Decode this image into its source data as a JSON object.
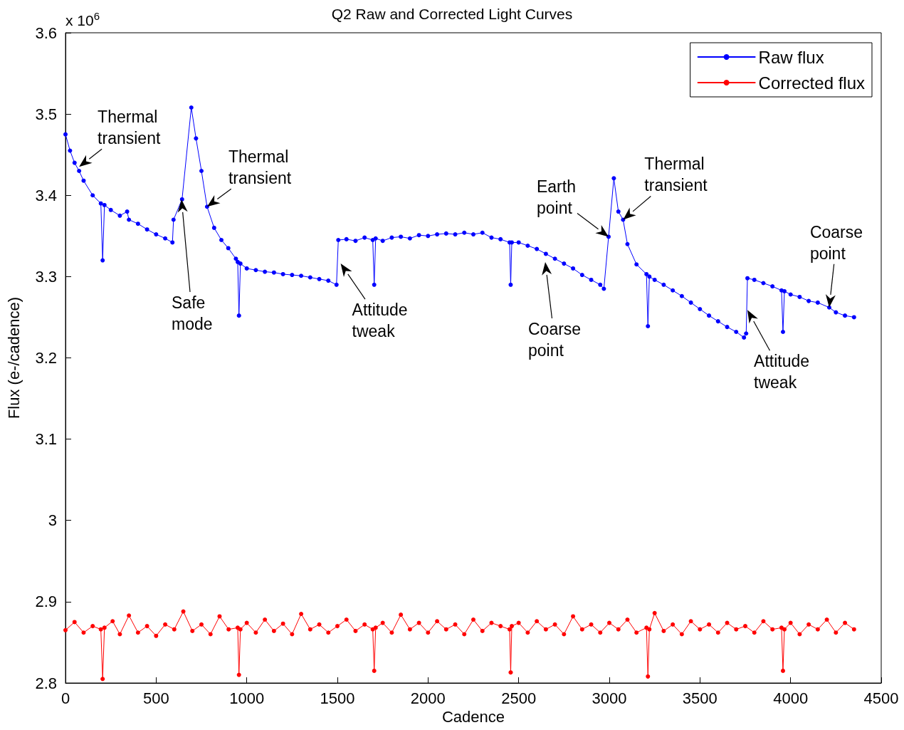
{
  "chart_data": {
    "type": "line",
    "title": "Q2 Raw and Corrected Light Curves",
    "xlabel": "Cadence",
    "ylabel": "Flux (e-/cadence)",
    "xlim": [
      0,
      4500
    ],
    "xticks": [
      0,
      500,
      1000,
      1500,
      2000,
      2500,
      3000,
      3500,
      4000,
      4500
    ],
    "ylim": [
      2.8,
      3.6
    ],
    "yticks": [
      2.8,
      2.9,
      3,
      3.1,
      3.2,
      3.3,
      3.4,
      3.5,
      3.6
    ],
    "legend": "top right",
    "marker": "circle",
    "line_style": "solid",
    "series": [
      {
        "name": "Raw flux",
        "color": "#0000ff",
        "x": [
          0,
          25,
          50,
          75,
          100,
          150,
          195,
          205,
          215,
          250,
          300,
          340,
          350,
          400,
          450,
          500,
          550,
          590,
          596,
          643,
          694,
          720,
          750,
          781,
          820,
          860,
          898,
          940,
          950,
          957,
          965,
          1000,
          1050,
          1100,
          1150,
          1200,
          1250,
          1300,
          1350,
          1400,
          1450,
          1495,
          1505,
          1550,
          1600,
          1650,
          1695,
          1703,
          1711,
          1750,
          1800,
          1850,
          1900,
          1950,
          2000,
          2050,
          2100,
          2150,
          2200,
          2250,
          2300,
          2350,
          2400,
          2450,
          2456,
          2462,
          2500,
          2550,
          2600,
          2650,
          2700,
          2750,
          2800,
          2850,
          2900,
          2950,
          2970,
          2996,
          3025,
          3050,
          3076,
          3100,
          3150,
          3205,
          3213,
          3221,
          3250,
          3300,
          3350,
          3400,
          3450,
          3500,
          3550,
          3600,
          3650,
          3700,
          3743,
          3755,
          3762,
          3800,
          3850,
          3900,
          3950,
          3958,
          3966,
          4000,
          4050,
          4100,
          4150,
          4213,
          4250,
          4300,
          4350
        ],
        "values": [
          3.475,
          3.455,
          3.44,
          3.43,
          3.418,
          3.4,
          3.39,
          3.32,
          3.388,
          3.382,
          3.375,
          3.38,
          3.37,
          3.365,
          3.358,
          3.352,
          3.347,
          3.342,
          3.37,
          3.395,
          3.508,
          3.47,
          3.43,
          3.386,
          3.36,
          3.345,
          3.335,
          3.322,
          3.318,
          3.252,
          3.316,
          3.31,
          3.308,
          3.306,
          3.305,
          3.303,
          3.302,
          3.301,
          3.299,
          3.297,
          3.295,
          3.29,
          3.345,
          3.346,
          3.344,
          3.348,
          3.345,
          3.29,
          3.347,
          3.344,
          3.348,
          3.349,
          3.347,
          3.351,
          3.35,
          3.352,
          3.353,
          3.352,
          3.354,
          3.352,
          3.354,
          3.348,
          3.346,
          3.342,
          3.29,
          3.342,
          3.342,
          3.338,
          3.334,
          3.328,
          3.322,
          3.316,
          3.31,
          3.302,
          3.296,
          3.29,
          3.285,
          3.349,
          3.421,
          3.38,
          3.37,
          3.34,
          3.315,
          3.303,
          3.239,
          3.3,
          3.296,
          3.29,
          3.283,
          3.276,
          3.268,
          3.26,
          3.252,
          3.245,
          3.238,
          3.232,
          3.225,
          3.23,
          3.298,
          3.296,
          3.292,
          3.288,
          3.283,
          3.232,
          3.282,
          3.278,
          3.275,
          3.27,
          3.268,
          3.262,
          3.256,
          3.252,
          3.25
        ]
      },
      {
        "name": "Corrected flux",
        "color": "#ff0000",
        "x": [
          0,
          50,
          100,
          150,
          195,
          205,
          215,
          260,
          300,
          350,
          400,
          450,
          500,
          550,
          600,
          650,
          700,
          750,
          800,
          850,
          900,
          950,
          957,
          965,
          1000,
          1050,
          1100,
          1150,
          1200,
          1250,
          1300,
          1350,
          1400,
          1450,
          1500,
          1550,
          1600,
          1650,
          1695,
          1703,
          1711,
          1750,
          1800,
          1850,
          1900,
          1950,
          2000,
          2050,
          2100,
          2150,
          2200,
          2250,
          2300,
          2350,
          2400,
          2450,
          2456,
          2462,
          2500,
          2550,
          2600,
          2650,
          2700,
          2750,
          2800,
          2850,
          2900,
          2950,
          3000,
          3050,
          3100,
          3150,
          3205,
          3213,
          3221,
          3250,
          3300,
          3350,
          3400,
          3450,
          3500,
          3550,
          3600,
          3650,
          3700,
          3750,
          3800,
          3850,
          3900,
          3950,
          3958,
          3966,
          4000,
          4050,
          4100,
          4150,
          4200,
          4250,
          4300,
          4350
        ],
        "values": [
          2.865,
          2.875,
          2.862,
          2.87,
          2.866,
          2.805,
          2.868,
          2.876,
          2.86,
          2.883,
          2.862,
          2.87,
          2.858,
          2.872,
          2.866,
          2.888,
          2.864,
          2.872,
          2.86,
          2.882,
          2.866,
          2.868,
          2.81,
          2.866,
          2.874,
          2.862,
          2.878,
          2.864,
          2.873,
          2.86,
          2.885,
          2.866,
          2.872,
          2.862,
          2.87,
          2.878,
          2.864,
          2.872,
          2.866,
          2.815,
          2.868,
          2.874,
          2.862,
          2.884,
          2.866,
          2.874,
          2.862,
          2.876,
          2.866,
          2.872,
          2.86,
          2.878,
          2.864,
          2.874,
          2.87,
          2.866,
          2.813,
          2.87,
          2.874,
          2.862,
          2.876,
          2.866,
          2.872,
          2.86,
          2.882,
          2.866,
          2.872,
          2.862,
          2.874,
          2.866,
          2.878,
          2.862,
          2.868,
          2.808,
          2.866,
          2.886,
          2.864,
          2.872,
          2.86,
          2.876,
          2.866,
          2.872,
          2.862,
          2.874,
          2.866,
          2.87,
          2.862,
          2.876,
          2.866,
          2.868,
          2.815,
          2.866,
          2.874,
          2.86,
          2.872,
          2.866,
          2.878,
          2.862,
          2.874,
          2.866
        ]
      }
    ],
    "annotations": [
      "x 10$^{6}$",
      {
        "text": "Thermal transient",
        "x": 75,
        "y": 3.435
      },
      "Safe mode",
      {
        "text": "Thermal transient",
        "x": 781,
        "y": 3.386
      },
      {
        "text": "Attitude tweak",
        "x": 1518,
        "y": 3.316
      },
      "Coarse point",
      {
        "text": "Earth point",
        "x": 2996,
        "y": 3.349
      },
      {
        "text": "Thermal transient",
        "x": 3076,
        "y": 3.37
      },
      {
        "text": "Attitude tweak",
        "x": 3762,
        "y": 3.259
      },
      {
        "text": "Coarse point",
        "x": 4213,
        "y": 3.262
      }
    ]
  }
}
